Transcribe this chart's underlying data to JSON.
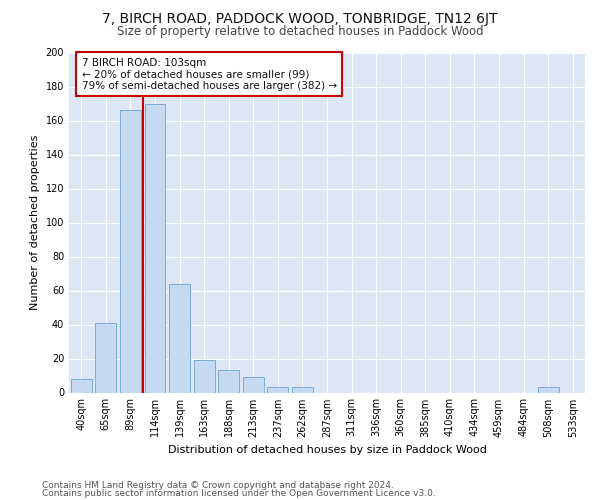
{
  "title": "7, BIRCH ROAD, PADDOCK WOOD, TONBRIDGE, TN12 6JT",
  "subtitle": "Size of property relative to detached houses in Paddock Wood",
  "xlabel": "Distribution of detached houses by size in Paddock Wood",
  "ylabel": "Number of detached properties",
  "categories": [
    "40sqm",
    "65sqm",
    "89sqm",
    "114sqm",
    "139sqm",
    "163sqm",
    "188sqm",
    "213sqm",
    "237sqm",
    "262sqm",
    "287sqm",
    "311sqm",
    "336sqm",
    "360sqm",
    "385sqm",
    "410sqm",
    "434sqm",
    "459sqm",
    "484sqm",
    "508sqm",
    "533sqm"
  ],
  "values": [
    8,
    41,
    166,
    170,
    64,
    19,
    13,
    9,
    3,
    3,
    0,
    0,
    0,
    0,
    0,
    0,
    0,
    0,
    0,
    3,
    0
  ],
  "bar_color": "#c5d9f0",
  "bar_edgecolor": "#7aadd4",
  "vline_x": 2.5,
  "vline_color": "#cc0000",
  "annotation_line1": "7 BIRCH ROAD: 103sqm",
  "annotation_line2": "← 20% of detached houses are smaller (99)",
  "annotation_line3": "79% of semi-detached houses are larger (382) →",
  "annotation_box_color": "#ffffff",
  "annotation_box_edgecolor": "#cc0000",
  "ylim": [
    0,
    200
  ],
  "yticks": [
    0,
    20,
    40,
    60,
    80,
    100,
    120,
    140,
    160,
    180,
    200
  ],
  "footer1": "Contains HM Land Registry data © Crown copyright and database right 2024.",
  "footer2": "Contains public sector information licensed under the Open Government Licence v3.0.",
  "fig_bg_color": "#ffffff",
  "plot_bg_color": "#dce6f5",
  "grid_color": "#ffffff",
  "title_fontsize": 10,
  "subtitle_fontsize": 8.5,
  "axis_label_fontsize": 8,
  "tick_fontsize": 7,
  "annotation_fontsize": 7.5,
  "footer_fontsize": 6.5
}
